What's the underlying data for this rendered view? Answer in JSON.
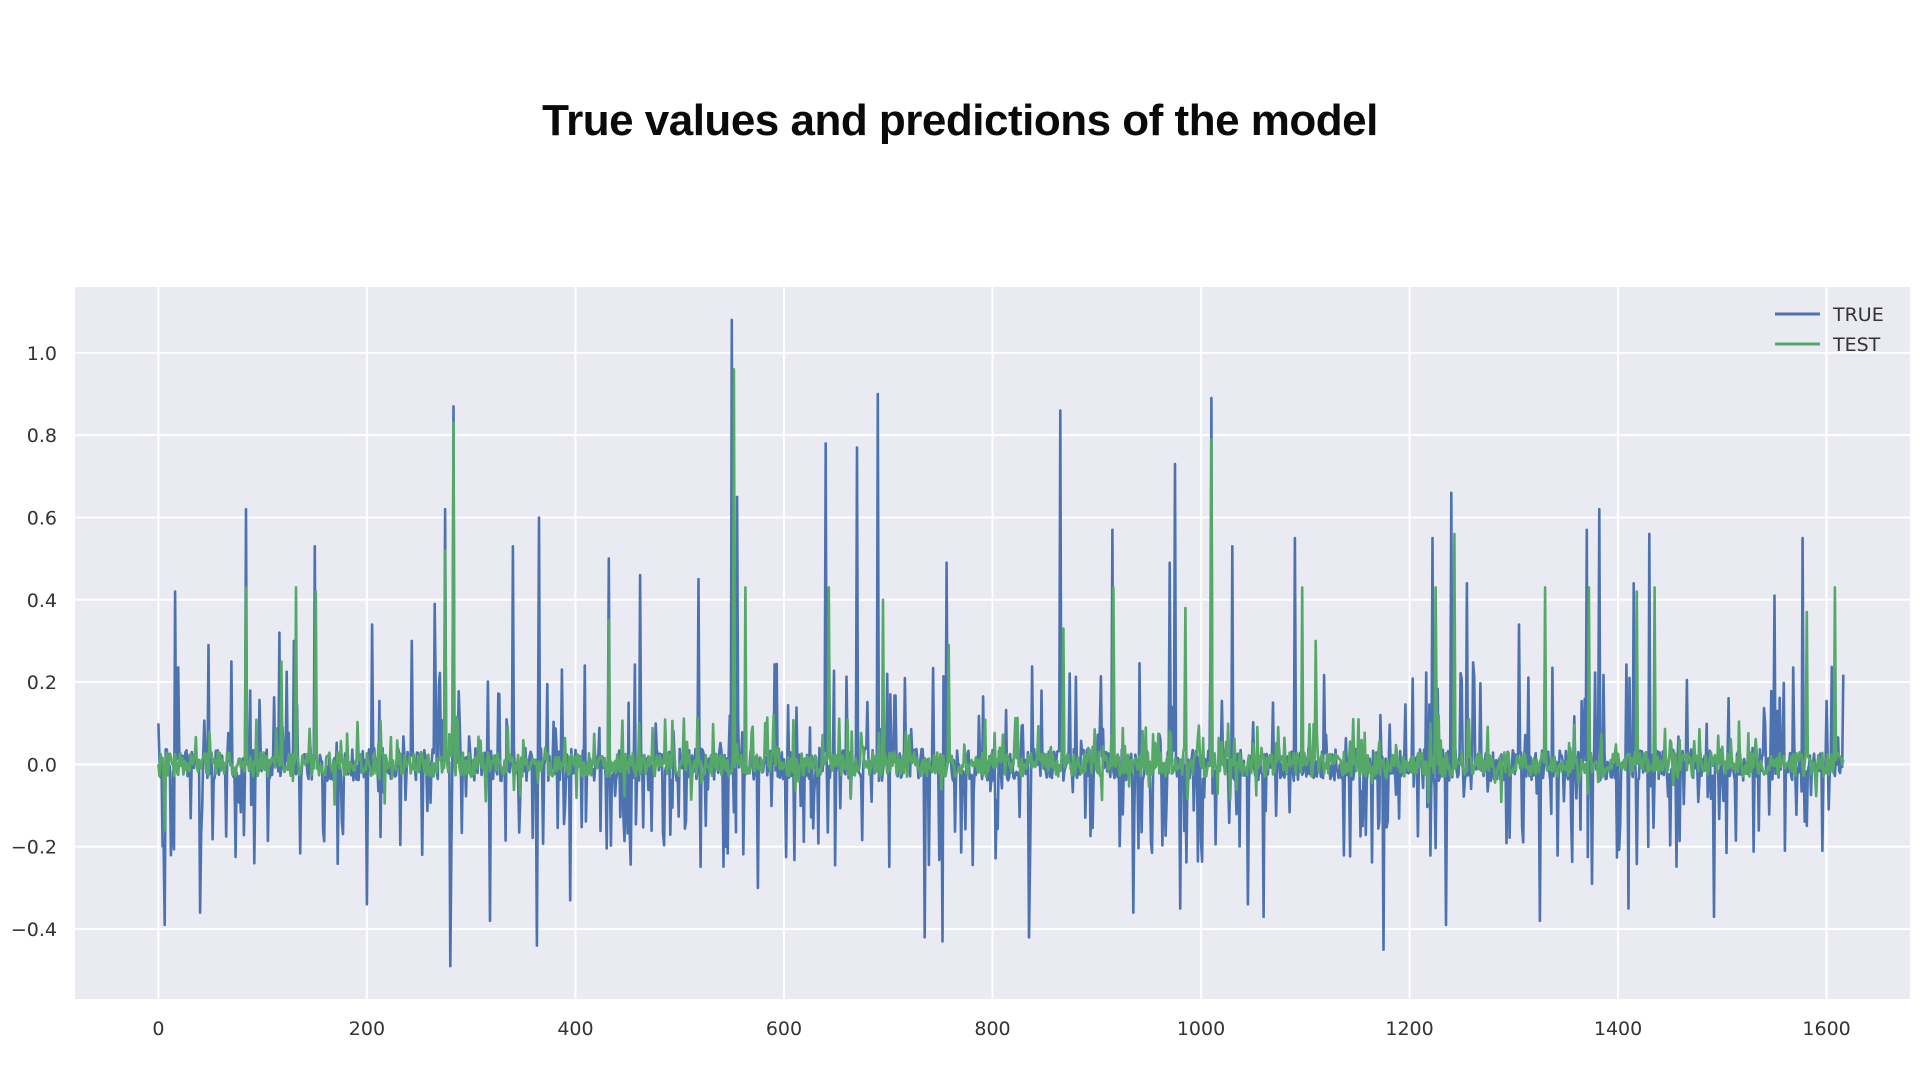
{
  "page": {
    "title": "True values and predictions of the model"
  },
  "chart_data": {
    "type": "line",
    "title": "",
    "xlabel": "",
    "ylabel": "",
    "xlim": [
      -80,
      1680
    ],
    "ylim": [
      -0.57,
      1.16
    ],
    "xticks": [
      0,
      200,
      400,
      600,
      800,
      1000,
      1200,
      1400,
      1600
    ],
    "xtick_labels": [
      "0",
      "200",
      "400",
      "600",
      "800",
      "1000",
      "1200",
      "1400",
      "1600"
    ],
    "yticks": [
      -0.4,
      -0.2,
      0.0,
      0.2,
      0.4,
      0.6,
      0.8,
      1.0
    ],
    "ytick_labels": [
      "−0.4",
      "−0.2",
      "0.0",
      "0.2",
      "0.4",
      "0.6",
      "0.8",
      "1.0"
    ],
    "grid": true,
    "legend_position": "top-right",
    "background_color": "#eaeaf2",
    "grid_color": "#ffffff",
    "n_points": 1617,
    "series": [
      {
        "name": "TRUE",
        "color": "#4c72b0",
        "spikes": [
          [
            0,
            0.1
          ],
          [
            6,
            -0.39
          ],
          [
            16,
            0.42
          ],
          [
            40,
            -0.36
          ],
          [
            48,
            0.29
          ],
          [
            70,
            0.25
          ],
          [
            84,
            0.62
          ],
          [
            92,
            -0.24
          ],
          [
            116,
            0.32
          ],
          [
            130,
            0.3
          ],
          [
            150,
            0.53
          ],
          [
            200,
            -0.34
          ],
          [
            205,
            0.34
          ],
          [
            243,
            0.3
          ],
          [
            265,
            0.39
          ],
          [
            275,
            0.62
          ],
          [
            280,
            -0.49
          ],
          [
            283,
            0.87
          ],
          [
            318,
            -0.38
          ],
          [
            340,
            0.53
          ],
          [
            363,
            -0.44
          ],
          [
            365,
            0.6
          ],
          [
            395,
            -0.33
          ],
          [
            432,
            0.5
          ],
          [
            462,
            0.46
          ],
          [
            518,
            0.45
          ],
          [
            550,
            1.08
          ],
          [
            555,
            0.65
          ],
          [
            575,
            -0.3
          ],
          [
            640,
            0.78
          ],
          [
            670,
            0.77
          ],
          [
            690,
            0.9
          ],
          [
            735,
            -0.42
          ],
          [
            752,
            -0.43
          ],
          [
            756,
            0.49
          ],
          [
            835,
            -0.42
          ],
          [
            865,
            0.86
          ],
          [
            915,
            0.57
          ],
          [
            935,
            -0.36
          ],
          [
            970,
            0.49
          ],
          [
            975,
            0.73
          ],
          [
            980,
            -0.35
          ],
          [
            1010,
            0.89
          ],
          [
            1030,
            0.53
          ],
          [
            1045,
            -0.34
          ],
          [
            1060,
            -0.37
          ],
          [
            1090,
            0.55
          ],
          [
            1175,
            -0.45
          ],
          [
            1222,
            0.55
          ],
          [
            1235,
            -0.39
          ],
          [
            1240,
            0.66
          ],
          [
            1255,
            0.44
          ],
          [
            1305,
            0.34
          ],
          [
            1325,
            -0.38
          ],
          [
            1370,
            0.57
          ],
          [
            1375,
            -0.29
          ],
          [
            1382,
            0.62
          ],
          [
            1410,
            -0.35
          ],
          [
            1415,
            0.44
          ],
          [
            1430,
            0.56
          ],
          [
            1492,
            -0.37
          ],
          [
            1550,
            0.41
          ],
          [
            1577,
            0.55
          ],
          [
            1596,
            -0.21
          ]
        ]
      },
      {
        "name": "TEST",
        "color": "#55a868",
        "spikes": [
          [
            6,
            -0.16
          ],
          [
            84,
            0.43
          ],
          [
            118,
            0.25
          ],
          [
            132,
            0.43
          ],
          [
            151,
            0.42
          ],
          [
            275,
            0.52
          ],
          [
            283,
            0.83
          ],
          [
            432,
            0.35
          ],
          [
            552,
            0.96
          ],
          [
            563,
            0.43
          ],
          [
            643,
            0.43
          ],
          [
            695,
            0.4
          ],
          [
            758,
            0.29
          ],
          [
            868,
            0.33
          ],
          [
            916,
            0.43
          ],
          [
            985,
            0.38
          ],
          [
            1010,
            0.79
          ],
          [
            1097,
            0.43
          ],
          [
            1110,
            0.3
          ],
          [
            1225,
            0.43
          ],
          [
            1243,
            0.56
          ],
          [
            1330,
            0.43
          ],
          [
            1372,
            0.43
          ],
          [
            1418,
            0.42
          ],
          [
            1435,
            0.43
          ],
          [
            1581,
            0.37
          ],
          [
            1608,
            0.43
          ]
        ]
      }
    ]
  }
}
